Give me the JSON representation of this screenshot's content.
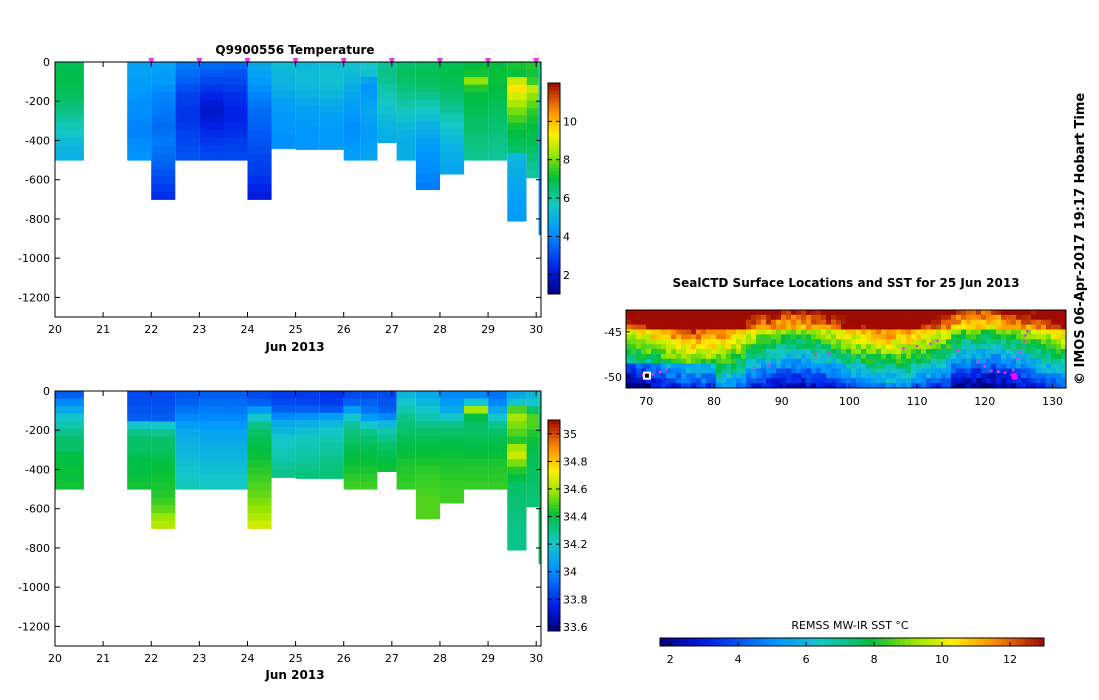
{
  "chart_data": [
    {
      "type": "heatmap",
      "title": "Q9900556  Temperature",
      "variable": "temperature",
      "xlabel": "Jun 2013",
      "x_ticks": [
        20,
        21,
        22,
        23,
        24,
        25,
        26,
        27,
        28,
        29,
        30
      ],
      "xlim": [
        20,
        30.1
      ],
      "y_ticks": [
        0,
        -200,
        -400,
        -600,
        -800,
        -1000,
        -1200
      ],
      "ylim": [
        -1300,
        0
      ],
      "colorbar_ticks": [
        2,
        4,
        6,
        8,
        10
      ],
      "colorbar_range": [
        1,
        12
      ],
      "profile_markers_x": [
        22,
        23,
        24,
        25,
        26,
        27,
        28,
        29,
        30
      ]
    },
    {
      "type": "heatmap",
      "title": "",
      "variable": "salinity",
      "xlabel": "Jun 2013",
      "x_ticks": [
        20,
        21,
        22,
        23,
        24,
        25,
        26,
        27,
        28,
        29,
        30
      ],
      "xlim": [
        20,
        30.1
      ],
      "y_ticks": [
        0,
        -200,
        -400,
        -600,
        -800,
        -1000,
        -1200
      ],
      "ylim": [
        -1300,
        0
      ],
      "colorbar_ticks": [
        33.6,
        33.8,
        34,
        34.2,
        34.4,
        34.6,
        34.8,
        35
      ],
      "colorbar_tick_labels": [
        "33.6",
        "33.8",
        "34",
        "34.2",
        "34.4",
        "34.6",
        "34.8",
        "35"
      ],
      "colorbar_range": [
        33.57,
        35.1
      ]
    },
    {
      "type": "heatmap",
      "title": "SealCTD Surface Locations and SST for 25 Jun 2013",
      "variable": "sst_map",
      "x_ticks": [
        70,
        80,
        90,
        100,
        110,
        120,
        130
      ],
      "xlim": [
        67,
        132
      ],
      "y_ticks": [
        -45,
        -50
      ],
      "y_tick_labels": [
        "-45",
        "-50"
      ],
      "ylim": [
        -51.2,
        -42.6
      ],
      "colorbar_label": "REMSS MW-IR SST °C",
      "colorbar_ticks": [
        2,
        4,
        6,
        8,
        10,
        12
      ],
      "colorbar_range": [
        1.7,
        13
      ]
    }
  ],
  "profiles": [
    {
      "x0": 20.0,
      "x1": 20.6,
      "max_depth": 500,
      "temps": [
        6.8,
        6.9,
        6.9,
        6.8,
        6.7,
        6.5,
        6.3,
        6.0,
        5.8,
        5.6,
        5.3,
        5.1,
        5.0
      ],
      "sals": [
        33.9,
        34.0,
        34.1,
        34.2,
        34.25,
        34.3,
        34.35,
        34.35,
        34.4,
        34.4,
        34.42,
        34.42,
        34.43
      ]
    },
    {
      "x0": 21.5,
      "x1": 22.0,
      "max_depth": 500,
      "temps": [
        4.6,
        4.6,
        4.5,
        4.4,
        4.3,
        4.2,
        4.2,
        4.1,
        4.0,
        4.0,
        4.1,
        4.2,
        4.3
      ],
      "sals": [
        33.85,
        33.86,
        33.88,
        33.9,
        34.2,
        34.3,
        34.35,
        34.35,
        34.38,
        34.4,
        34.4,
        34.42,
        34.43
      ]
    },
    {
      "x0": 22.0,
      "x1": 22.5,
      "max_depth": 700,
      "temps": [
        4.6,
        4.5,
        4.4,
        4.2,
        4.0,
        3.9,
        3.8,
        3.7,
        3.6,
        3.7,
        3.8,
        3.7,
        3.6,
        3.4,
        3.2,
        3.0,
        2.8,
        2.6
      ],
      "sals": [
        33.85,
        33.86,
        33.88,
        33.9,
        34.2,
        34.3,
        34.35,
        34.36,
        34.38,
        34.4,
        34.42,
        34.43,
        34.44,
        34.45,
        34.48,
        34.52,
        34.58,
        34.62
      ]
    },
    {
      "x0": 22.5,
      "x1": 23.0,
      "max_depth": 500,
      "temps": [
        3.8,
        3.6,
        3.4,
        3.1,
        2.9,
        2.8,
        2.7,
        2.7,
        2.8,
        2.9,
        3.0,
        3.1,
        3.2
      ],
      "sals": [
        33.88,
        33.9,
        33.95,
        34.0,
        34.05,
        34.1,
        34.12,
        34.14,
        34.16,
        34.18,
        34.2,
        34.22,
        34.24
      ]
    },
    {
      "x0": 23.0,
      "x1": 23.5,
      "max_depth": 500,
      "temps": [
        3.6,
        3.3,
        3.0,
        2.7,
        2.4,
        2.1,
        2.0,
        2.1,
        2.3,
        2.5,
        2.7,
        2.9,
        3.0
      ],
      "sals": [
        33.9,
        33.93,
        33.97,
        34.0,
        34.04,
        34.08,
        34.1,
        34.12,
        34.14,
        34.16,
        34.18,
        34.2,
        34.22
      ]
    },
    {
      "x0": 23.5,
      "x1": 24.0,
      "max_depth": 500,
      "temps": [
        3.5,
        3.2,
        3.0,
        2.8,
        2.6,
        2.5,
        2.4,
        2.4,
        2.5,
        2.6,
        2.8,
        2.9,
        3.0
      ],
      "sals": [
        33.9,
        33.93,
        33.96,
        34.0,
        34.04,
        34.08,
        34.1,
        34.12,
        34.14,
        34.16,
        34.18,
        34.2,
        34.22
      ]
    },
    {
      "x0": 24.0,
      "x1": 24.5,
      "max_depth": 700,
      "temps": [
        4.8,
        4.6,
        4.4,
        4.2,
        4.0,
        3.8,
        3.6,
        3.5,
        3.4,
        3.3,
        3.2,
        3.1,
        3.0,
        2.9,
        2.8,
        2.6,
        2.4,
        2.2
      ],
      "sals": [
        33.85,
        33.9,
        34.05,
        34.2,
        34.3,
        34.35,
        34.38,
        34.4,
        34.42,
        34.44,
        34.46,
        34.48,
        34.5,
        34.52,
        34.55,
        34.58,
        34.62,
        34.66
      ]
    },
    {
      "x0": 24.5,
      "x1": 25.0,
      "max_depth": 440,
      "temps": [
        5.3,
        5.2,
        5.1,
        5.0,
        4.8,
        4.6,
        4.5,
        4.4,
        4.3,
        4.3,
        4.2,
        4.2
      ],
      "sals": [
        33.82,
        33.85,
        33.9,
        34.0,
        34.1,
        34.15,
        34.2,
        34.22,
        34.24,
        34.26,
        34.28,
        34.3
      ]
    },
    {
      "x0": 25.0,
      "x1": 25.5,
      "max_depth": 445,
      "temps": [
        5.2,
        5.3,
        5.3,
        5.2,
        5.0,
        4.8,
        4.6,
        4.5,
        4.4,
        4.3,
        4.3,
        4.3
      ],
      "sals": [
        33.82,
        33.84,
        33.9,
        34.02,
        34.12,
        34.18,
        34.22,
        34.24,
        34.26,
        34.28,
        34.3,
        34.32
      ]
    },
    {
      "x0": 25.5,
      "x1": 26.0,
      "max_depth": 445,
      "temps": [
        5.3,
        5.4,
        5.4,
        5.3,
        5.1,
        4.9,
        4.7,
        4.5,
        4.5,
        4.4,
        4.4,
        4.4
      ],
      "sals": [
        33.8,
        33.82,
        33.88,
        34.05,
        34.15,
        34.2,
        34.24,
        34.26,
        34.28,
        34.3,
        34.32,
        34.33
      ]
    },
    {
      "x0": 26.0,
      "x1": 26.35,
      "max_depth": 500,
      "temps": [
        5.4,
        5.3,
        5.1,
        4.9,
        4.7,
        4.5,
        4.4,
        4.3,
        4.2,
        4.2,
        4.3,
        4.4,
        4.5
      ],
      "sals": [
        33.85,
        33.9,
        34.05,
        34.2,
        34.28,
        34.32,
        34.35,
        34.38,
        34.4,
        34.42,
        34.44,
        34.46,
        34.48
      ]
    },
    {
      "x0": 26.35,
      "x1": 26.7,
      "max_depth": 500,
      "temps": [
        5.6,
        5.4,
        4.6,
        4.3,
        4.4,
        4.6,
        4.7,
        4.6,
        4.5,
        4.4,
        4.5,
        4.6,
        4.7
      ],
      "sals": [
        33.85,
        33.9,
        33.95,
        34.05,
        34.2,
        34.3,
        34.35,
        34.38,
        34.4,
        34.42,
        34.44,
        34.46,
        34.48
      ]
    },
    {
      "x0": 26.7,
      "x1": 27.1,
      "max_depth": 410,
      "temps": [
        6.2,
        6.3,
        6.2,
        6.0,
        5.8,
        5.6,
        5.5,
        5.3,
        5.1,
        5.0,
        4.9
      ],
      "sals": [
        33.85,
        33.88,
        33.9,
        34.0,
        34.15,
        34.25,
        34.3,
        34.35,
        34.38,
        34.4,
        34.42
      ]
    },
    {
      "x0": 27.1,
      "x1": 27.5,
      "max_depth": 500,
      "temps": [
        6.6,
        6.7,
        6.6,
        6.4,
        6.2,
        6.0,
        5.7,
        5.4,
        5.2,
        5.0,
        4.9,
        4.9,
        4.9
      ],
      "sals": [
        34.15,
        34.2,
        34.25,
        34.3,
        34.33,
        34.35,
        34.38,
        34.4,
        34.42,
        34.44,
        34.45,
        34.46,
        34.47
      ]
    },
    {
      "x0": 27.5,
      "x1": 28.0,
      "max_depth": 650,
      "temps": [
        6.7,
        6.8,
        6.7,
        6.5,
        6.2,
        5.9,
        5.6,
        5.3,
        5.0,
        4.8,
        4.6,
        4.4,
        4.3,
        4.2,
        4.1,
        4.0,
        3.9
      ],
      "sals": [
        34.1,
        34.15,
        34.2,
        34.25,
        34.3,
        34.35,
        34.38,
        34.4,
        34.42,
        34.44,
        34.46,
        34.47,
        34.48,
        34.49,
        34.5,
        34.5,
        34.5
      ]
    },
    {
      "x0": 28.0,
      "x1": 28.5,
      "max_depth": 570,
      "temps": [
        6.8,
        6.9,
        6.8,
        6.7,
        6.5,
        6.3,
        6.1,
        5.8,
        5.6,
        5.4,
        5.2,
        5.0,
        4.9,
        4.8,
        4.7
      ],
      "sals": [
        34.0,
        34.05,
        34.1,
        34.2,
        34.3,
        34.35,
        34.38,
        34.4,
        34.42,
        34.44,
        34.45,
        34.46,
        34.47,
        34.48,
        34.48
      ]
    },
    {
      "x0": 28.5,
      "x1": 29.0,
      "max_depth": 500,
      "temps": [
        7.0,
        7.2,
        8.2,
        7.3,
        7.0,
        6.9,
        6.8,
        6.7,
        6.6,
        6.5,
        6.4,
        6.3,
        6.2
      ],
      "sals": [
        34.0,
        34.2,
        34.6,
        34.4,
        34.35,
        34.36,
        34.38,
        34.4,
        34.42,
        34.44,
        34.45,
        34.46,
        34.47
      ]
    },
    {
      "x0": 29.0,
      "x1": 29.4,
      "max_depth": 500,
      "temps": [
        7.0,
        7.1,
        7.1,
        7.0,
        6.9,
        6.8,
        6.7,
        6.6,
        6.5,
        6.4,
        6.3,
        6.2,
        6.1
      ],
      "sals": [
        33.95,
        34.0,
        34.1,
        34.2,
        34.3,
        34.35,
        34.38,
        34.4,
        34.42,
        34.44,
        34.45,
        34.46,
        34.47
      ]
    },
    {
      "x0": 29.4,
      "x1": 29.8,
      "max_depth": 810,
      "temps": [
        7.2,
        7.1,
        8.8,
        9.5,
        8.9,
        8.5,
        8.0,
        7.6,
        7.2,
        7.0,
        6.8,
        6.6,
        5.2,
        5.0,
        4.9,
        4.8,
        4.7,
        4.6,
        4.5,
        4.5,
        4.4
      ],
      "sals": [
        34.1,
        34.2,
        34.5,
        34.6,
        34.55,
        34.5,
        34.45,
        34.6,
        34.65,
        34.55,
        34.45,
        34.4,
        34.35,
        34.35,
        34.34,
        34.33,
        34.32,
        34.31,
        34.3,
        34.3,
        34.3
      ]
    },
    {
      "x0": 29.8,
      "x1": 30.05,
      "max_depth": 590,
      "temps": [
        7.3,
        7.2,
        7.5,
        8.7,
        8.2,
        7.8,
        7.4,
        7.2,
        7.0,
        6.9,
        6.8,
        6.6,
        6.4,
        6.2,
        6.0
      ],
      "sals": [
        34.15,
        34.2,
        34.35,
        34.5,
        34.5,
        34.45,
        34.42,
        34.4,
        34.38,
        34.37,
        34.36,
        34.35,
        34.34,
        34.33,
        34.33
      ]
    },
    {
      "x0": 30.05,
      "x1": 30.1,
      "max_depth": 880,
      "temps": [
        6.0,
        5.8,
        5.6,
        5.4,
        5.2,
        5.0,
        4.8,
        4.6,
        4.5,
        4.4,
        4.3,
        4.2,
        4.2,
        4.2,
        4.1,
        4.1,
        4.0,
        4.0,
        4.0,
        4.0,
        4.0,
        4.0
      ],
      "sals": [
        34.2,
        34.25,
        34.3,
        34.32,
        34.34,
        34.35,
        34.36,
        34.37,
        34.38,
        34.38,
        34.38,
        34.38,
        34.38,
        34.38,
        34.38,
        34.38,
        34.38,
        34.38,
        34.38,
        34.38,
        34.38,
        34.38
      ]
    }
  ],
  "track_points": [
    [
      69.5,
      -49.8
    ],
    [
      69.8,
      -49.5
    ],
    [
      70.2,
      -49.9
    ],
    [
      70.5,
      -49.6
    ],
    [
      71,
      -49.7
    ],
    [
      72,
      -49.4
    ],
    [
      73,
      -49.2
    ],
    [
      86,
      -49.0
    ],
    [
      88,
      -48.7
    ],
    [
      95,
      -47.6
    ],
    [
      97,
      -47.4
    ],
    [
      108,
      -46.8
    ],
    [
      110,
      -46.6
    ],
    [
      112,
      -46.3
    ],
    [
      113,
      -46.0
    ],
    [
      116,
      -47.1
    ],
    [
      119,
      -48.3
    ],
    [
      120,
      -48.8
    ],
    [
      121,
      -49.3
    ],
    [
      122,
      -49.4
    ],
    [
      123,
      -49.5
    ],
    [
      124,
      -49.8
    ],
    [
      124.6,
      -50.1
    ],
    [
      124.2,
      -49.2
    ],
    [
      124.8,
      -48.0
    ],
    [
      125.2,
      -47.2
    ],
    [
      125.8,
      -46.1
    ],
    [
      126,
      -45.4
    ],
    [
      126.3,
      -44.9
    ]
  ],
  "current_location": [
    124.4,
    -49.9
  ],
  "credit": "© IMOS 06-Apr-2017 19:17 Hobart Time"
}
